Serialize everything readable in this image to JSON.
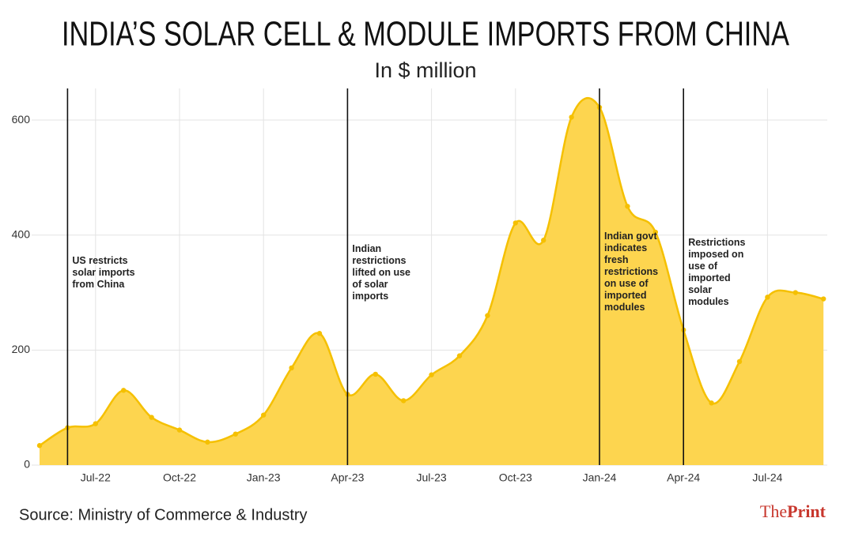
{
  "chart_data": {
    "type": "area",
    "title": "INDIA’S SOLAR CELL & MODULE IMPORTS FROM CHINA",
    "subtitle": "In $ million",
    "source": "Source: Ministry of Commerce & Industry",
    "brand": {
      "part1": "The",
      "part2": "Print"
    },
    "categories": [
      null,
      null,
      "Jul-22",
      null,
      null,
      "Oct-22",
      null,
      null,
      "Jan-23",
      null,
      null,
      "Apr-23",
      null,
      null,
      "Jul-23",
      null,
      null,
      "Oct-23",
      null,
      null,
      "Jan-24",
      null,
      null,
      "Apr-24",
      null,
      null,
      "Jul-24",
      null,
      null
    ],
    "series": [
      {
        "name": "Imports",
        "color": "#f5c000",
        "fill": "#fdd54f",
        "values": [
          34,
          65,
          72,
          130,
          83,
          61,
          40,
          54,
          87,
          169,
          229,
          123,
          158,
          112,
          157,
          190,
          260,
          421,
          391,
          605,
          622,
          450,
          405,
          235,
          108,
          180,
          292,
          300,
          289
        ]
      }
    ],
    "ylim": [
      0,
      655
    ],
    "yticks": [
      0,
      200,
      400,
      600
    ],
    "grid": true,
    "annotations": [
      {
        "index": 1,
        "lines": [
          "US restricts",
          "solar imports",
          "from China"
        ]
      },
      {
        "index": 11,
        "lines": [
          "Indian",
          "restrictions",
          "lifted on use",
          "of solar",
          "imports"
        ]
      },
      {
        "index": 20,
        "lines": [
          "Indian govt",
          "indicates",
          "fresh",
          "restrictions",
          "on use of",
          "imported",
          "modules"
        ]
      },
      {
        "index": 23,
        "lines": [
          "Restrictions",
          "imposed on",
          "use of",
          "imported",
          "solar",
          "modules"
        ]
      }
    ]
  }
}
